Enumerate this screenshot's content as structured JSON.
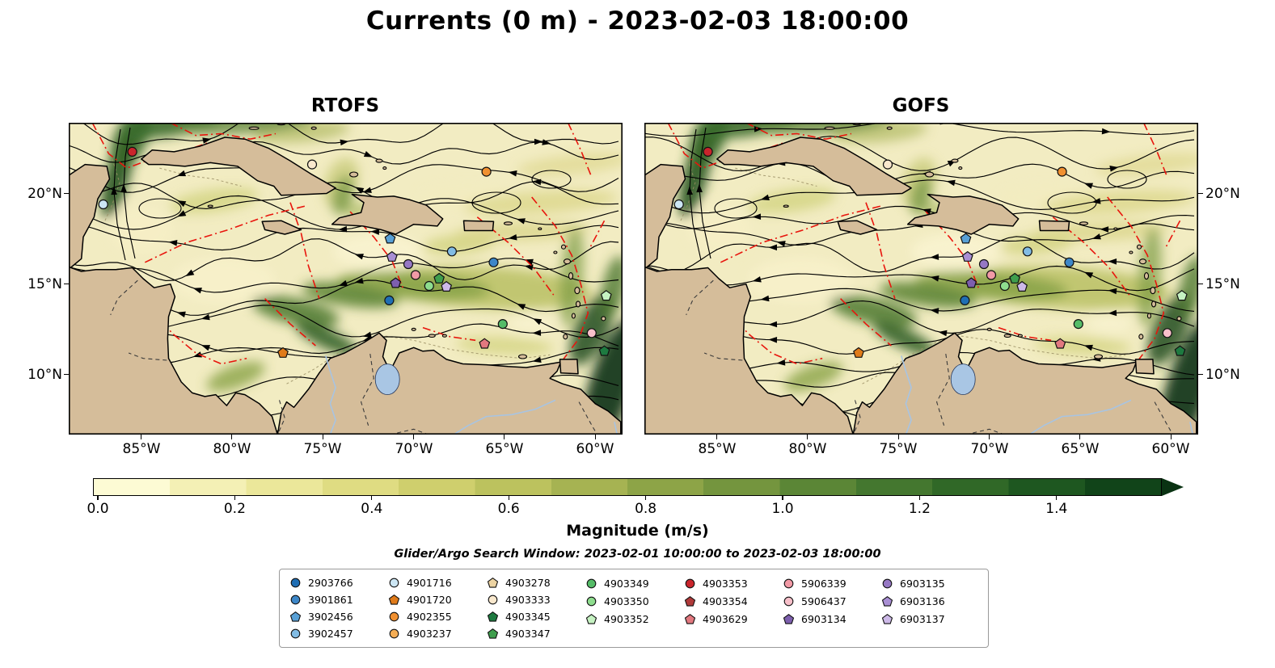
{
  "title": "Currents (0 m) - 2023-02-03 18:00:00",
  "subtitle": "Glider/Argo Search Window: 2023-02-01 10:00:00 to 2023-02-03 18:00:00",
  "panels": [
    {
      "title": "RTOFS"
    },
    {
      "title": "GOFS"
    }
  ],
  "axes": {
    "lat_tick_labels": [
      "20°N",
      "15°N",
      "10°N"
    ],
    "lon_tick_labels": [
      "85°W",
      "80°W",
      "75°W",
      "70°W",
      "65°W",
      "60°W"
    ]
  },
  "colorbar": {
    "label": "Magnitude (m/s)",
    "tick_labels": [
      "0.0",
      "0.2",
      "0.4",
      "0.6",
      "0.8",
      "1.0",
      "1.2",
      "1.4"
    ],
    "colors": [
      "#fdfbd4",
      "#f4f0b5",
      "#ebe79a",
      "#dfdc82",
      "#cfcf6d",
      "#bcc25e",
      "#a6b352",
      "#8da447",
      "#74953e",
      "#5b8636",
      "#44772f",
      "#306827",
      "#1e5720",
      "#114419"
    ],
    "arrow_color": "#0a3313"
  },
  "legend": {
    "items": [
      {
        "id": "2903766",
        "shape": "circle",
        "color": "#1f6eb4"
      },
      {
        "id": "3901861",
        "shape": "circle",
        "color": "#3d87c8"
      },
      {
        "id": "3902456",
        "shape": "pentagon",
        "color": "#58a0d6"
      },
      {
        "id": "3902457",
        "shape": "circle",
        "color": "#82bce4"
      },
      {
        "id": "4901716",
        "shape": "circle",
        "color": "#cce6f4"
      },
      {
        "id": "4901720",
        "shape": "pentagon",
        "color": "#e07b1a"
      },
      {
        "id": "4902355",
        "shape": "circle",
        "color": "#f09030"
      },
      {
        "id": "4903237",
        "shape": "circle",
        "color": "#f4ad55"
      },
      {
        "id": "4903278",
        "shape": "pentagon",
        "color": "#ecd3a2"
      },
      {
        "id": "4903333",
        "shape": "circle",
        "color": "#f9e8cd"
      },
      {
        "id": "4903345",
        "shape": "pentagon",
        "color": "#1e7a40"
      },
      {
        "id": "4903347",
        "shape": "pentagon",
        "color": "#3f9e4d"
      },
      {
        "id": "4903349",
        "shape": "circle",
        "color": "#55bc68"
      },
      {
        "id": "4903350",
        "shape": "circle",
        "color": "#8edd8e"
      },
      {
        "id": "4903352",
        "shape": "pentagon",
        "color": "#c6f2c2"
      },
      {
        "id": "4903353",
        "shape": "circle",
        "color": "#c9252c"
      },
      {
        "id": "4903354",
        "shape": "pentagon",
        "color": "#b03a3a"
      },
      {
        "id": "4903629",
        "shape": "pentagon",
        "color": "#e2787f"
      },
      {
        "id": "5906339",
        "shape": "circle",
        "color": "#f29aa6"
      },
      {
        "id": "5906437",
        "shape": "circle",
        "color": "#f8c0ca"
      },
      {
        "id": "6903134",
        "shape": "pentagon",
        "color": "#7d5fae"
      },
      {
        "id": "6903135",
        "shape": "circle",
        "color": "#9678c4"
      },
      {
        "id": "6903136",
        "shape": "pentagon",
        "color": "#a98fd4"
      },
      {
        "id": "6903137",
        "shape": "pentagon",
        "color": "#cdb9e8"
      }
    ]
  },
  "chart_data": {
    "type": "heatmap",
    "subtype": "geographic current-magnitude field with streamlines (model comparison)",
    "title": "Currents (0 m) - 2023-02-03 18:00:00",
    "panels": [
      "RTOFS",
      "GOFS"
    ],
    "region": "Caribbean Sea",
    "colorbar_label": "Magnitude (m/s)",
    "colorbar_ticks": [
      0.0,
      0.2,
      0.4,
      0.6,
      0.8,
      1.0,
      1.2,
      1.4
    ],
    "colorbar_range": [
      0.0,
      1.55
    ],
    "lon_ticks_deg_w": [
      85,
      80,
      75,
      70,
      65,
      60
    ],
    "lat_ticks_deg_n": [
      20,
      15,
      10
    ],
    "lon_range": [
      -89.0,
      -58.5
    ],
    "lat_range": [
      6.7,
      23.9
    ],
    "overlays": [
      "black arrowed streamlines (current direction)",
      "red dash-dot transect lines",
      "Argo float position markers"
    ],
    "search_window": "2023-02-01 10:00:00 to 2023-02-03 18:00:00",
    "float_positions": [
      {
        "id": "4903353",
        "lon": -85.5,
        "lat": 22.3
      },
      {
        "id": "4903333",
        "lon": -75.6,
        "lat": 21.6
      },
      {
        "id": "4902355",
        "lon": -66.0,
        "lat": 21.2
      },
      {
        "id": "4901716",
        "lon": -87.1,
        "lat": 19.4
      },
      {
        "id": "3902456",
        "lon": -71.3,
        "lat": 17.5
      },
      {
        "id": "3902457",
        "lon": -67.9,
        "lat": 16.8
      },
      {
        "id": "3901861",
        "lon": -65.6,
        "lat": 16.2
      },
      {
        "id": "6903136",
        "lon": -71.2,
        "lat": 16.5
      },
      {
        "id": "6903135",
        "lon": -70.3,
        "lat": 16.1
      },
      {
        "id": "5906339",
        "lon": -69.9,
        "lat": 15.5
      },
      {
        "id": "6903134",
        "lon": -71.0,
        "lat": 15.05
      },
      {
        "id": "4903347",
        "lon": -68.6,
        "lat": 15.3
      },
      {
        "id": "4903350",
        "lon": -69.15,
        "lat": 14.9
      },
      {
        "id": "6903137",
        "lon": -68.2,
        "lat": 14.85
      },
      {
        "id": "2903766",
        "lon": -71.35,
        "lat": 14.1
      },
      {
        "id": "4903352",
        "lon": -59.4,
        "lat": 14.35
      },
      {
        "id": "4903349",
        "lon": -65.1,
        "lat": 12.8
      },
      {
        "id": "5906437",
        "lon": -60.2,
        "lat": 12.3
      },
      {
        "id": "4903629",
        "lon": -66.1,
        "lat": 11.7
      },
      {
        "id": "4901720",
        "lon": -77.2,
        "lat": 11.2
      },
      {
        "id": "4903345",
        "lon": -59.5,
        "lat": 11.3
      }
    ]
  }
}
